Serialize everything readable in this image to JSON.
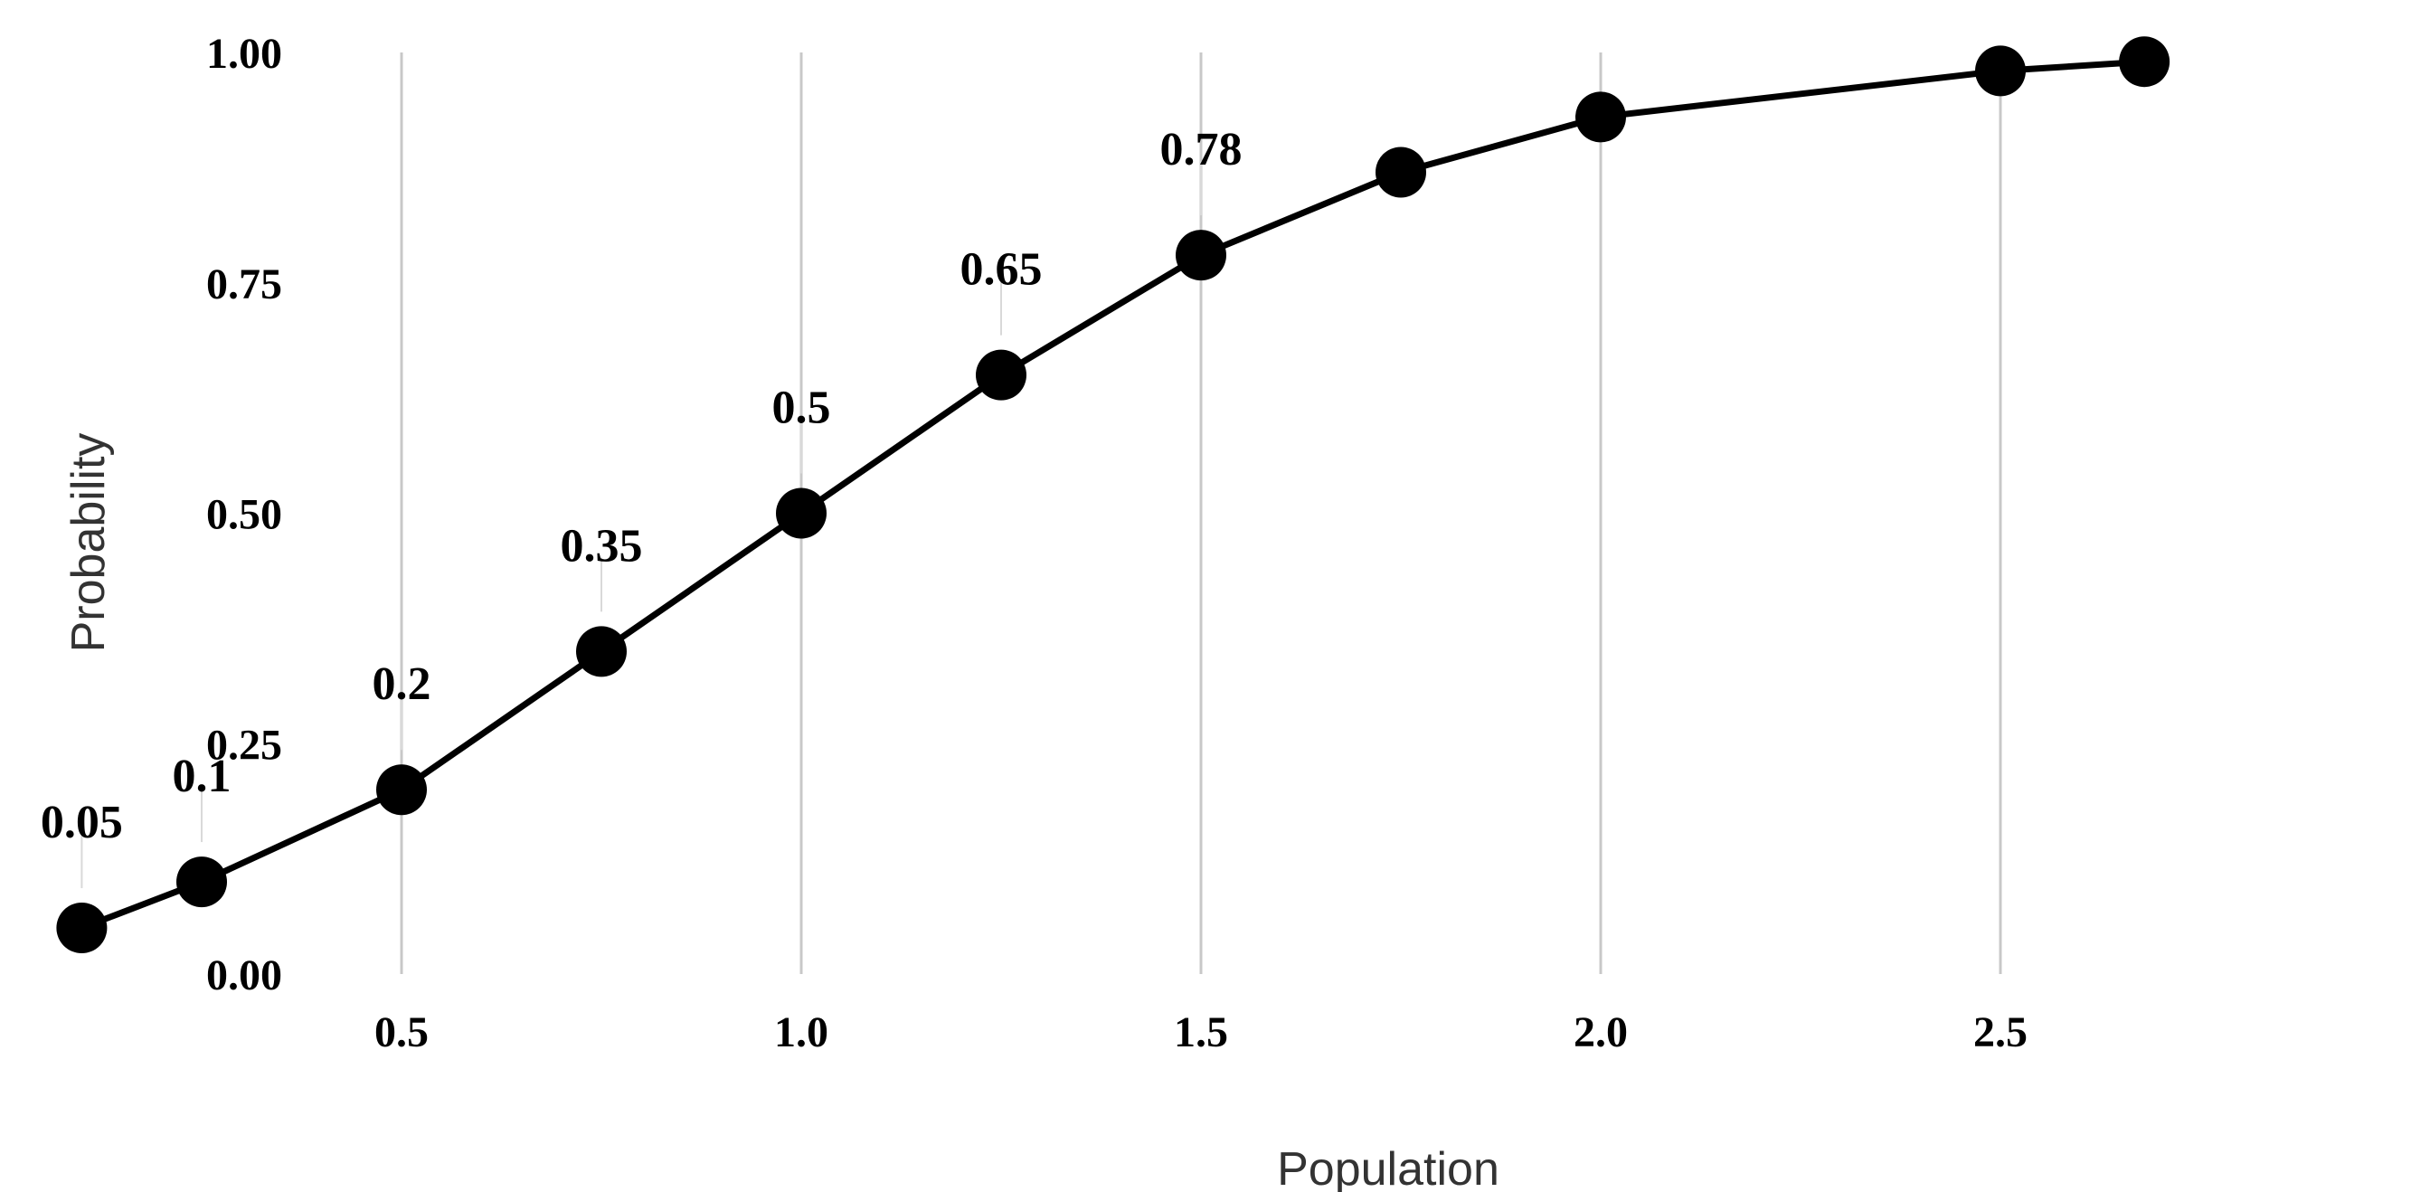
{
  "chart_data": {
    "type": "line",
    "xlabel": "Population",
    "ylabel": "Probability",
    "xlim": [
      0,
      2.68
    ],
    "ylim": [
      0,
      1.0
    ],
    "x_ticks": [
      0.5,
      1.0,
      1.5,
      2.0,
      2.5
    ],
    "x_tick_labels": [
      "0.5",
      "1.0",
      "1.5",
      "2.0",
      "2.5"
    ],
    "y_ticks": [
      0,
      0.25,
      0.5,
      0.75,
      1.0
    ],
    "y_tick_labels": [
      "0.00",
      "0.25",
      "0.50",
      "0.75",
      "1.00"
    ],
    "vertical_grid": true,
    "horizontal_grid": false,
    "legend": "none",
    "series_color": "#000000",
    "series": [
      {
        "x": [
          0.1,
          0.25,
          0.5,
          0.75,
          1.0,
          1.25,
          1.5,
          1.75,
          2.0,
          2.5,
          2.68
        ],
        "values": [
          0.05,
          0.1,
          0.2,
          0.35,
          0.5,
          0.65,
          0.78,
          0.87,
          0.93,
          0.98,
          0.99
        ]
      }
    ],
    "data_labels": [
      "0.05",
      "0.1",
      "0.2",
      "0.35",
      "0.5",
      "0.65",
      "0.78",
      "",
      "",
      "",
      ""
    ]
  }
}
